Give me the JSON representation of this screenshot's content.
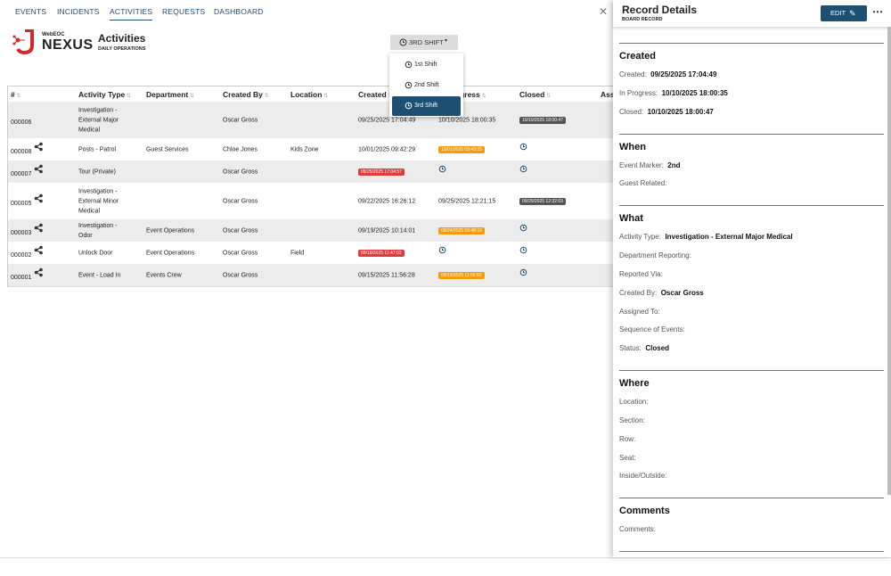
{
  "nav": {
    "tabs": [
      "EVENTS",
      "INCIDENTS",
      "ACTIVITIES",
      "REQUESTS",
      "DASHBOARD"
    ],
    "active": 2
  },
  "brand": {
    "small": "WebEOC",
    "big": "NEXUS"
  },
  "header": {
    "title": "Activities",
    "subtitle": "DAILY OPERATIONS"
  },
  "shift": {
    "button": "3RD SHIFT",
    "options": [
      "1st Shift",
      "2nd Shift",
      "3rd Shift"
    ],
    "selected": 2
  },
  "table": {
    "columns": [
      "#",
      "Activity Type",
      "Department",
      "Created By",
      "Location",
      "Created",
      "In Progress",
      "Closed",
      "Ass"
    ],
    "rows": [
      {
        "id": "000006",
        "shared": false,
        "activity_type": "Investigation - External Major Medical",
        "department": null,
        "created_by": "Oscar Gross",
        "location": null,
        "created": {
          "text": "09/25/2025 17:04:49",
          "badge": null
        },
        "in_progress": {
          "text": "10/10/2025 18:00:35",
          "badge": null
        },
        "closed": {
          "text": "10/10/2025 18:00:47",
          "badge": "gray"
        }
      },
      {
        "id": "000008",
        "shared": true,
        "activity_type": "Posts - Patrol",
        "department": "Guest Services",
        "created_by": "Chloe Jones",
        "location": "Kids Zone",
        "created": {
          "text": "10/01/2025 09:42:29",
          "badge": null
        },
        "in_progress": {
          "text": "10/01/2025 09:43:25",
          "badge": "orange"
        },
        "closed": null
      },
      {
        "id": "000007",
        "shared": true,
        "activity_type": "Tour (Private)",
        "department": null,
        "created_by": "Oscar Gross",
        "location": null,
        "created": {
          "text": "09/25/2025 17:04:57",
          "badge": "red"
        },
        "in_progress": null,
        "closed": null
      },
      {
        "id": "000005",
        "shared": true,
        "activity_type": "Investigation - External Minor Medical",
        "department": null,
        "created_by": "Oscar Gross",
        "location": null,
        "created": {
          "text": "09/22/2025 16:26:12",
          "badge": null
        },
        "in_progress": {
          "text": "09/25/2025 12:21:15",
          "badge": null
        },
        "closed": {
          "text": "09/25/2025 12:32:03",
          "badge": "gray"
        }
      },
      {
        "id": "000003",
        "shared": true,
        "activity_type": "Investigation - Odor",
        "department": "Event Operations",
        "created_by": "Oscar Gross",
        "location": null,
        "created": {
          "text": "09/19/2025 10:14:01",
          "badge": null
        },
        "in_progress": {
          "text": "09/24/2025 09:48:16",
          "badge": "orange"
        },
        "closed": null
      },
      {
        "id": "000002",
        "shared": true,
        "activity_type": "Unlock Door",
        "department": "Event Operations",
        "created_by": "Oscar Gross",
        "location": "Field",
        "created": {
          "text": "09/18/2025 11:47:03",
          "badge": "red"
        },
        "in_progress": null,
        "closed": null
      },
      {
        "id": "000001",
        "shared": true,
        "activity_type": "Event - Load In",
        "department": "Events Crew",
        "created_by": "Oscar Gross",
        "location": null,
        "created": {
          "text": "09/15/2025 11:56:28",
          "badge": null
        },
        "in_progress": {
          "text": "09/15/2025 11:56:52",
          "badge": "orange"
        },
        "closed": null
      }
    ]
  },
  "panel": {
    "title": "Record Details",
    "subtitle": "BOARD RECORD",
    "edit": "EDIT",
    "sections": [
      {
        "heading": "Created",
        "fields": [
          {
            "label": "Created:",
            "value": "09/25/2025 17:04:49"
          },
          {
            "label": "In Progress:",
            "value": "10/10/2025 18:00:35"
          },
          {
            "label": "Closed:",
            "value": "10/10/2025 18:00:47"
          }
        ]
      },
      {
        "heading": "When",
        "fields": [
          {
            "label": "Event Marker:",
            "value": "2nd"
          },
          {
            "label": "Guest Related:"
          }
        ]
      },
      {
        "heading": "What",
        "fields": [
          {
            "label": "Activity Type:",
            "value": "Investigation - External Major Medical"
          },
          {
            "label": "Department Reporting:"
          },
          {
            "label": "Reported Via:"
          },
          {
            "label": "Created By:",
            "value": "Oscar Gross"
          },
          {
            "label": "Assigned To:"
          },
          {
            "label": "Sequence of Events:"
          },
          {
            "label": "Status:",
            "value": "Closed"
          }
        ]
      },
      {
        "heading": "Where",
        "fields": [
          {
            "label": "Location:"
          },
          {
            "label": "Section:"
          },
          {
            "label": "Row:"
          },
          {
            "label": "Seat:"
          },
          {
            "label": "Inside/Outside:"
          }
        ]
      },
      {
        "heading": "Comments",
        "fields": [
          {
            "label": "Comments:"
          }
        ]
      }
    ]
  }
}
